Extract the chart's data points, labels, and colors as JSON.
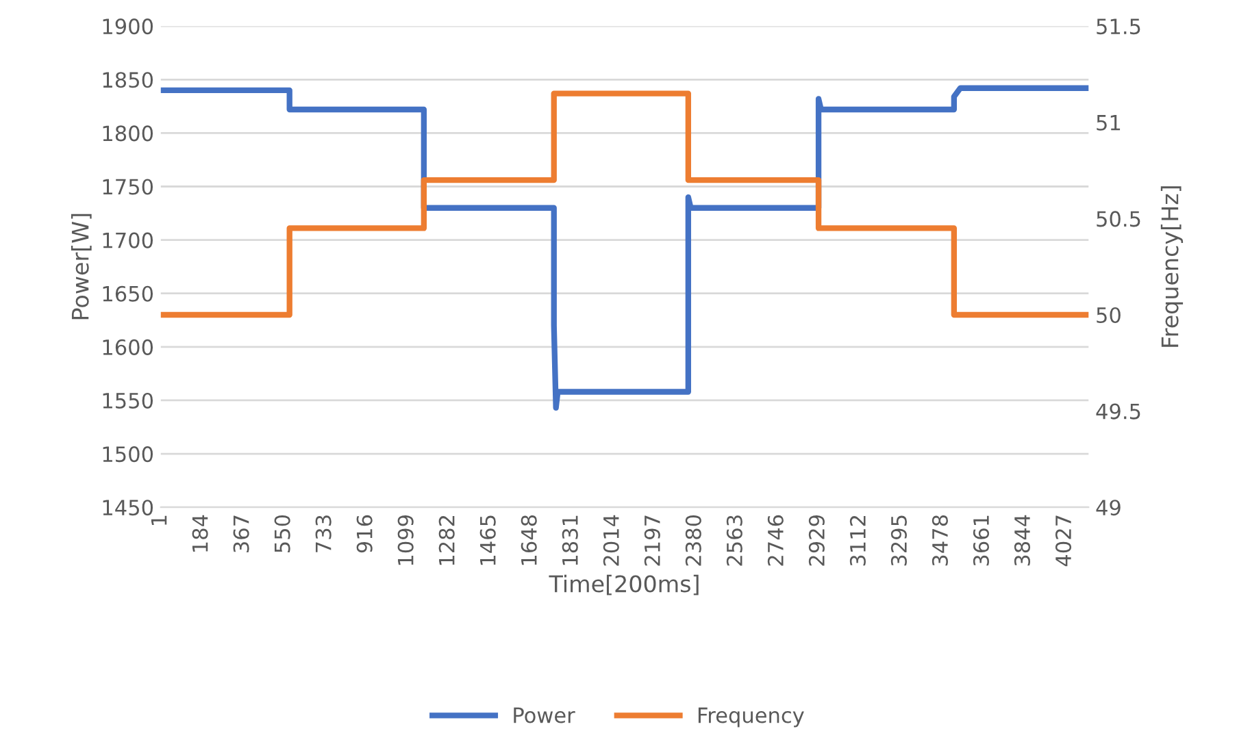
{
  "chart_data": {
    "type": "line",
    "xlabel": "Time[200ms]",
    "ylabel": "Power[W]",
    "y2label": "Frequency[Hz]",
    "xlim": [
      1,
      4131
    ],
    "xticks": [
      1,
      184,
      367,
      550,
      733,
      916,
      1099,
      1282,
      1465,
      1648,
      1831,
      2014,
      2197,
      2380,
      2563,
      2746,
      2929,
      3112,
      3295,
      3478,
      3661,
      3844,
      4027
    ],
    "ylim": [
      1450,
      1900
    ],
    "yticks": [
      1450,
      1500,
      1550,
      1600,
      1650,
      1700,
      1750,
      1800,
      1850,
      1900
    ],
    "y2lim": [
      49,
      51.5
    ],
    "y2ticks": [
      49,
      49.5,
      50,
      50.5,
      51,
      51.5
    ],
    "grid": "y",
    "legend": "bottom",
    "marker": "none",
    "line_style": "solid",
    "series": [
      {
        "name": "Power",
        "color": "#4472c4",
        "x": [
          1,
          574,
          574,
          1172,
          1172,
          1751,
          1751,
          1760,
          1768,
          2349,
          2349,
          2360,
          2929,
          2929,
          2940,
          3532,
          3532,
          3560,
          4131
        ],
        "values": [
          1840,
          1840,
          1822,
          1822,
          1730,
          1730,
          1620,
          1543,
          1558,
          1558,
          1740,
          1730,
          1730,
          1832,
          1822,
          1822,
          1834,
          1842,
          1842
        ]
      },
      {
        "name": "Frequency",
        "color": "#ed7d31",
        "axis": "y2",
        "x": [
          1,
          574,
          574,
          1172,
          1172,
          1751,
          1751,
          2349,
          2349,
          2929,
          2929,
          3532,
          3532,
          4131
        ],
        "values": [
          50,
          50,
          50.45,
          50.45,
          50.7,
          50.7,
          51.15,
          51.15,
          50.7,
          50.7,
          50.45,
          50.45,
          50,
          50
        ]
      }
    ]
  }
}
